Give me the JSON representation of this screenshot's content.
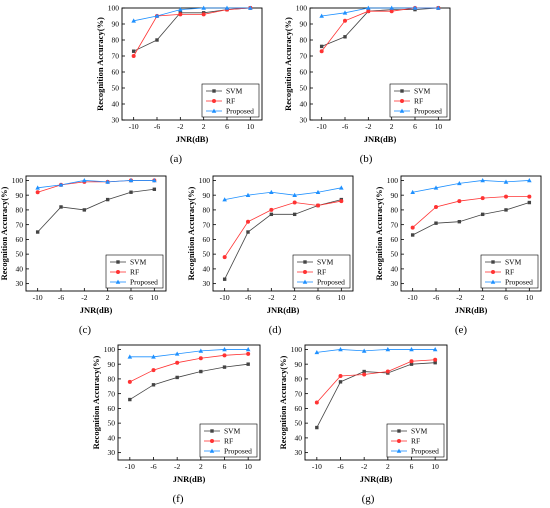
{
  "figure": {
    "xlabel": "JNR(dB)",
    "ylabel": "Recognition Accuracy(%)",
    "legend": [
      "SVM",
      "RF",
      "Proposed"
    ]
  },
  "colors": {
    "SVM": "#444444",
    "RF": "#ff3333",
    "Proposed": "#1e90ff"
  },
  "chart_data": [
    {
      "type": "line",
      "panel": "(a)",
      "x": [
        -10,
        -6,
        -2,
        2,
        6,
        10
      ],
      "xticks": [
        "-10",
        "-6",
        "-2",
        "2",
        "6",
        "10"
      ],
      "ylim": [
        30,
        100
      ],
      "yticks": [
        30,
        40,
        50,
        60,
        70,
        80,
        90,
        100
      ],
      "xlabel": "JNR(dB)",
      "ylabel": "Recognition Accuracy(%)",
      "legend_position": "bottom-right",
      "series": [
        {
          "name": "SVM",
          "values": [
            73,
            80,
            97,
            97,
            99,
            100
          ]
        },
        {
          "name": "RF",
          "values": [
            70,
            95,
            96,
            96,
            99,
            100
          ]
        },
        {
          "name": "Proposed",
          "values": [
            92,
            95,
            99,
            100,
            100,
            100
          ]
        }
      ]
    },
    {
      "type": "line",
      "panel": "(b)",
      "x": [
        -10,
        -6,
        -2,
        2,
        6,
        10
      ],
      "xticks": [
        "-10",
        "-6",
        "-2",
        "2",
        "6",
        "10"
      ],
      "ylim": [
        30,
        100
      ],
      "yticks": [
        30,
        40,
        50,
        60,
        70,
        80,
        90,
        100
      ],
      "xlabel": "JNR(dB)",
      "ylabel": "Recognition Accuracy(%)",
      "legend_position": "bottom-right",
      "series": [
        {
          "name": "SVM",
          "values": [
            76,
            82,
            98,
            99,
            99,
            100
          ]
        },
        {
          "name": "RF",
          "values": [
            73,
            92,
            98,
            98,
            100,
            100
          ]
        },
        {
          "name": "Proposed",
          "values": [
            95,
            97,
            100,
            100,
            100,
            100
          ]
        }
      ]
    },
    {
      "type": "line",
      "panel": "(c)",
      "x": [
        -10,
        -6,
        -2,
        2,
        6,
        10
      ],
      "xticks": [
        "-10",
        "-6",
        "-2",
        "2",
        "6",
        "10"
      ],
      "ylim": [
        25,
        103
      ],
      "yticks": [
        30,
        40,
        50,
        60,
        70,
        80,
        90,
        100
      ],
      "xlabel": "JNR(dB)",
      "ylabel": "Recognition Accuracy(%)",
      "legend_position": "bottom-right",
      "series": [
        {
          "name": "SVM",
          "values": [
            65,
            82,
            80,
            87,
            92,
            94
          ]
        },
        {
          "name": "RF",
          "values": [
            92,
            97,
            99,
            99,
            100,
            100
          ]
        },
        {
          "name": "Proposed",
          "values": [
            95,
            97,
            100,
            99,
            100,
            100
          ]
        }
      ]
    },
    {
      "type": "line",
      "panel": "(d)",
      "x": [
        -10,
        -6,
        -2,
        2,
        6,
        10
      ],
      "xticks": [
        "-10",
        "-6",
        "-2",
        "2",
        "6",
        "10"
      ],
      "ylim": [
        25,
        103
      ],
      "yticks": [
        30,
        40,
        50,
        60,
        70,
        80,
        90,
        100
      ],
      "xlabel": "JNR(dB)",
      "ylabel": "Recognition Accuracy(%)",
      "legend_position": "bottom-right",
      "series": [
        {
          "name": "SVM",
          "values": [
            33,
            65,
            77,
            77,
            83,
            87
          ]
        },
        {
          "name": "RF",
          "values": [
            48,
            72,
            80,
            85,
            83,
            86
          ]
        },
        {
          "name": "Proposed",
          "values": [
            87,
            90,
            92,
            90,
            92,
            95
          ]
        }
      ]
    },
    {
      "type": "line",
      "panel": "(e)",
      "x": [
        -10,
        -6,
        -2,
        2,
        6,
        10
      ],
      "xticks": [
        "-10",
        "-6",
        "-2",
        "2",
        "6",
        "10"
      ],
      "ylim": [
        25,
        103
      ],
      "yticks": [
        30,
        40,
        50,
        60,
        70,
        80,
        90,
        100
      ],
      "xlabel": "JNR(dB)",
      "ylabel": "Recognition Accuracy(%)",
      "legend_position": "bottom-right",
      "series": [
        {
          "name": "SVM",
          "values": [
            63,
            71,
            72,
            77,
            80,
            85
          ]
        },
        {
          "name": "RF",
          "values": [
            68,
            82,
            86,
            88,
            89,
            89
          ]
        },
        {
          "name": "Proposed",
          "values": [
            92,
            95,
            98,
            100,
            99,
            100
          ]
        }
      ]
    },
    {
      "type": "line",
      "panel": "(f)",
      "x": [
        -10,
        -6,
        -2,
        2,
        6,
        10
      ],
      "xticks": [
        "-10",
        "-6",
        "-2",
        "2",
        "6",
        "10"
      ],
      "ylim": [
        25,
        103
      ],
      "yticks": [
        30,
        40,
        50,
        60,
        70,
        80,
        90,
        100
      ],
      "xlabel": "JNR(dB)",
      "ylabel": "Recognition Accuracy(%)",
      "legend_position": "bottom-right",
      "series": [
        {
          "name": "SVM",
          "values": [
            66,
            76,
            81,
            85,
            88,
            90
          ]
        },
        {
          "name": "RF",
          "values": [
            78,
            86,
            91,
            94,
            96,
            97
          ]
        },
        {
          "name": "Proposed",
          "values": [
            95,
            95,
            97,
            99,
            100,
            100
          ]
        }
      ]
    },
    {
      "type": "line",
      "panel": "(g)",
      "x": [
        -10,
        -6,
        -2,
        2,
        6,
        10
      ],
      "xticks": [
        "-10",
        "-6",
        "-2",
        "2",
        "6",
        "10"
      ],
      "ylim": [
        25,
        103
      ],
      "yticks": [
        30,
        40,
        50,
        60,
        70,
        80,
        90,
        100
      ],
      "xlabel": "JNR(dB)",
      "ylabel": "Recognition Accuracy(%)",
      "legend_position": "bottom-right",
      "series": [
        {
          "name": "SVM",
          "values": [
            47,
            78,
            85,
            84,
            90,
            91
          ]
        },
        {
          "name": "RF",
          "values": [
            64,
            82,
            83,
            85,
            92,
            93
          ]
        },
        {
          "name": "Proposed",
          "values": [
            98,
            100,
            99,
            100,
            100,
            100
          ]
        }
      ]
    }
  ]
}
